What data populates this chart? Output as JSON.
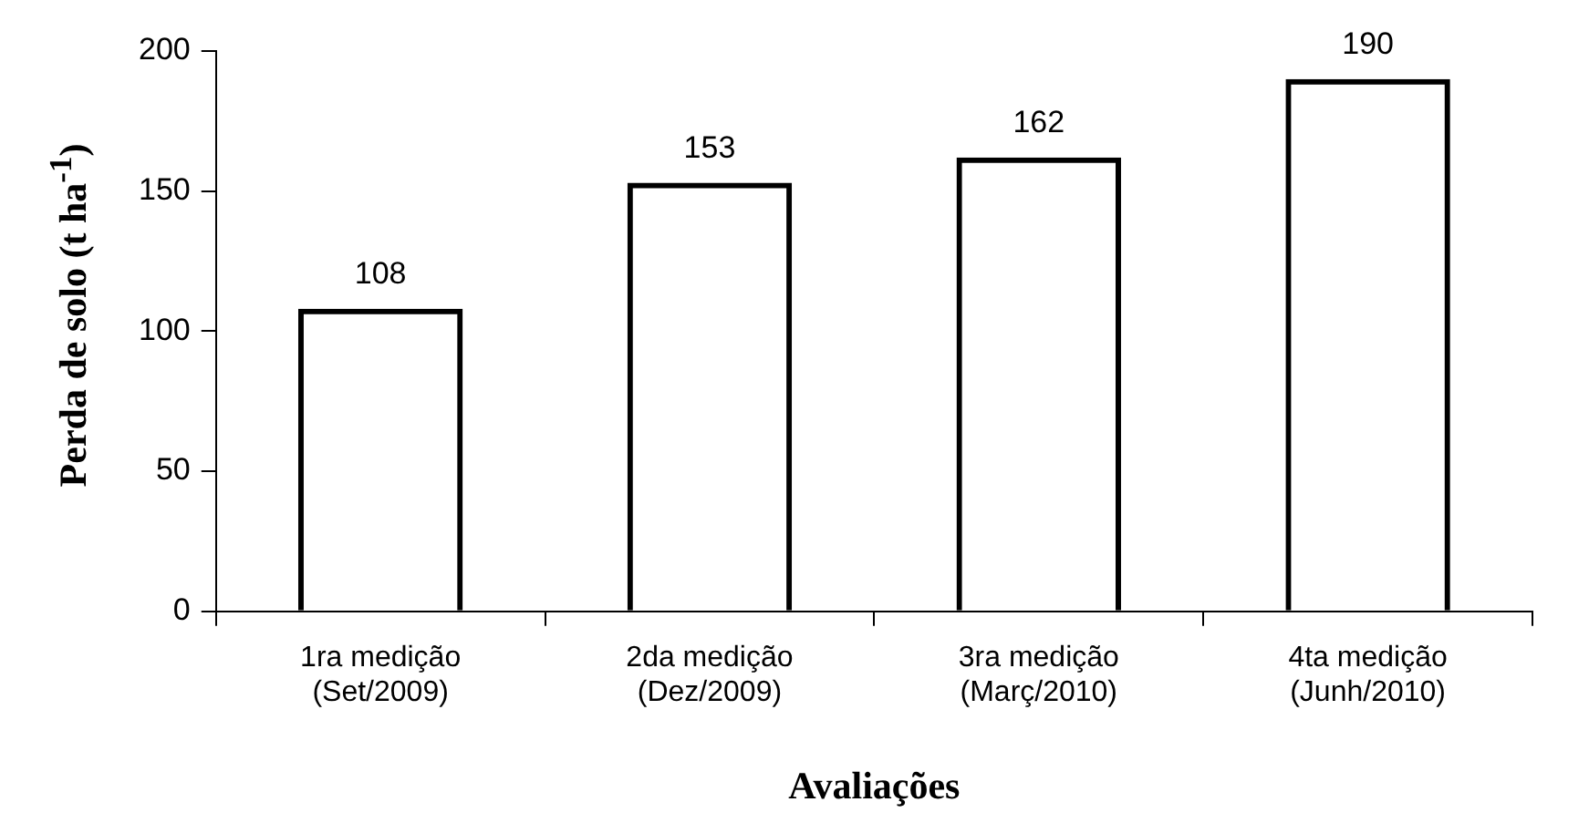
{
  "chart_data": {
    "type": "bar",
    "xlabel": "Avaliações",
    "ylabel": "Perda de solo (t ha$^{-1}$)",
    "categories": [
      "1ra medição\n(Set/2009)",
      "2da medição\n(Dez/2009)",
      "3ra medição\n(Març/2010)",
      "4ta medição\n(Junh/2010)"
    ],
    "values": [
      108,
      153,
      162,
      190
    ],
    "color": "#000000",
    "ylim": [
      0,
      200
    ],
    "yticks": [
      0,
      50,
      100,
      150,
      200
    ],
    "grid": false,
    "legend": false,
    "data_labels": true
  }
}
